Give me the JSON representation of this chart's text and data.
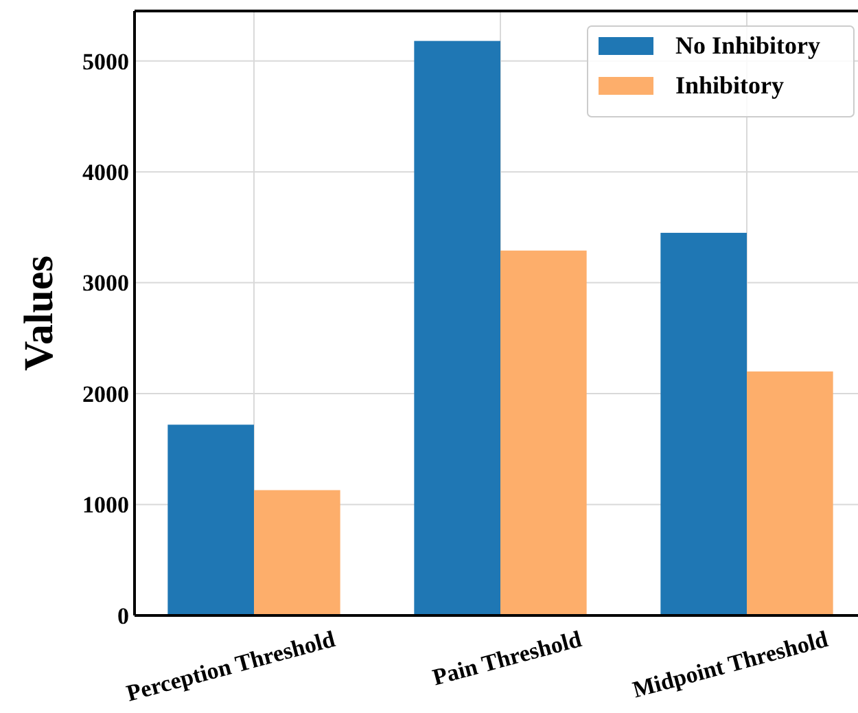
{
  "chart_data": {
    "type": "bar",
    "ylabel": "Values",
    "categories": [
      "Perception Threshold",
      "Pain Threshold",
      "Midpoint Threshold"
    ],
    "series": [
      {
        "name": "No Inhibitory",
        "color": "#1f77b4",
        "values": [
          1720,
          5180,
          3450
        ]
      },
      {
        "name": "Inhibitory",
        "color": "#fdae6b",
        "values": [
          1130,
          3290,
          2200
        ]
      }
    ],
    "ylim": [
      0,
      5450
    ],
    "yticks": [
      0,
      1000,
      2000,
      3000,
      4000,
      5000
    ],
    "grid": true,
    "legend": "top right"
  }
}
